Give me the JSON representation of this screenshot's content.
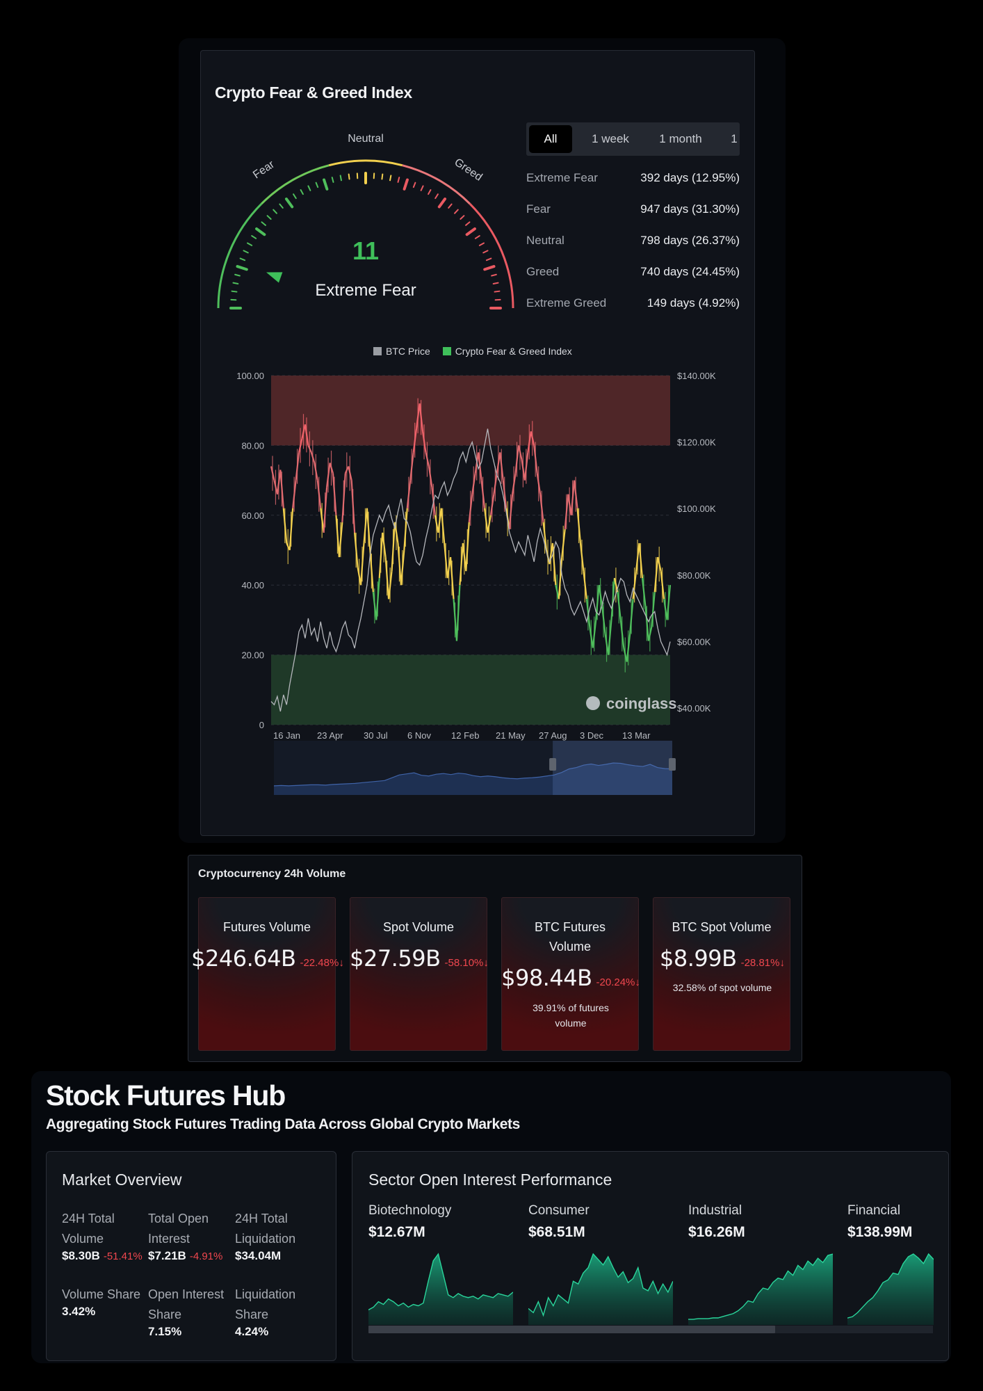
{
  "fear_greed": {
    "title": "Crypto Fear & Greed Index",
    "gauge": {
      "value": "11",
      "label": "Extreme Fear",
      "ticks": {
        "fear": "Fear",
        "neutral": "Neutral",
        "greed": "Greed"
      },
      "level": 11
    },
    "tabs": [
      "All",
      "1 week",
      "1 month",
      "1"
    ],
    "stats": [
      {
        "name": "Extreme Fear",
        "value": "392 days (12.95%)"
      },
      {
        "name": "Fear",
        "value": "947 days (31.30%)"
      },
      {
        "name": "Neutral",
        "value": "798 days (26.37%)"
      },
      {
        "name": "Greed",
        "value": "740 days (24.45%)"
      },
      {
        "name": "Extreme Greed",
        "value": "149 days (4.92%)"
      }
    ],
    "legend": {
      "btc": "BTC Price",
      "index": "Crypto Fear & Greed Index"
    },
    "watermark": "coinglass"
  },
  "chart_data": {
    "type": "line",
    "x_ticks": [
      "16 Jan",
      "23 Apr",
      "30 Jul",
      "6 Nov",
      "12 Feb",
      "21 May",
      "27 Aug",
      "3 Dec",
      "13 Mar"
    ],
    "y_left_ticks": [
      "100.00",
      "80.00",
      "60.00",
      "40.00",
      "20.00",
      "0"
    ],
    "y_right_ticks": [
      "$140.00K",
      "$120.00K",
      "$100.00K",
      "$80.00K",
      "$60.00K",
      "$40.00K"
    ],
    "ylim_left": [
      0,
      100
    ],
    "ylim_right": [
      35000,
      140000
    ],
    "zones": [
      {
        "from": 80,
        "to": 100,
        "color": "#5a2a2c"
      },
      {
        "from": 0,
        "to": 20,
        "color": "#22412b"
      }
    ],
    "series": [
      {
        "name": "Crypto Fear & Greed Index",
        "colors": {
          "extreme_greed": "#f0636a",
          "greed": "#e06a6f",
          "neutral": "#f2d04e",
          "fear": "#4fbf5c"
        },
        "values": [
          74,
          70,
          66,
          73,
          62,
          52,
          50,
          62,
          70,
          78,
          82,
          86,
          80,
          78,
          75,
          70,
          62,
          55,
          68,
          75,
          72,
          60,
          48,
          58,
          72,
          74,
          70,
          55,
          45,
          40,
          52,
          62,
          50,
          38,
          30,
          42,
          55,
          48,
          36,
          44,
          58,
          52,
          40,
          50,
          62,
          70,
          78,
          85,
          92,
          84,
          78,
          74,
          68,
          60,
          55,
          62,
          52,
          42,
          48,
          36,
          24,
          40,
          52,
          44,
          58,
          66,
          72,
          78,
          70,
          62,
          55,
          60,
          66,
          72,
          78,
          70,
          62,
          56,
          66,
          72,
          80,
          76,
          70,
          78,
          84,
          80,
          72,
          66,
          58,
          50,
          46,
          52,
          40,
          36,
          48,
          56,
          66,
          60,
          70,
          62,
          52,
          44,
          36,
          28,
          22,
          30,
          40,
          34,
          26,
          20,
          30,
          42,
          38,
          30,
          22,
          18,
          26,
          36,
          44,
          52,
          42,
          34,
          24,
          28,
          38,
          48,
          44,
          36,
          30,
          40
        ]
      },
      {
        "name": "BTC Price",
        "color": "#b5b7bc",
        "values": [
          42000,
          41000,
          43500,
          39000,
          44000,
          41000,
          47000,
          52000,
          57000,
          63000,
          65000,
          61000,
          67000,
          62000,
          64000,
          60000,
          66000,
          61000,
          58000,
          63000,
          59000,
          57000,
          60000,
          64000,
          66000,
          62000,
          61000,
          58000,
          63000,
          67000,
          72000,
          77000,
          86000,
          92000,
          95000,
          98000,
          96000,
          99000,
          101000,
          97000,
          94000,
          99000,
          103000,
          97000,
          96000,
          93000,
          88000,
          84000,
          83000,
          86000,
          91000,
          95000,
          100000,
          104000,
          103000,
          106000,
          108000,
          104000,
          106000,
          109000,
          111000,
          115000,
          117000,
          114000,
          118000,
          120000,
          116000,
          112000,
          114000,
          119000,
          124000,
          118000,
          114000,
          110000,
          108000,
          104000,
          99000,
          93000,
          90000,
          87000,
          90000,
          88000,
          86000,
          92000,
          88000,
          84000,
          90000,
          94000,
          91000,
          87000,
          84000,
          86000,
          90000,
          88000,
          80000,
          76000,
          74000,
          70000,
          68000,
          70000,
          72000,
          69000,
          66000,
          70000,
          73000,
          69000,
          68000,
          71000,
          75000,
          72000,
          70000,
          73000,
          76000,
          79000,
          78000,
          74000,
          72000,
          76000,
          74000,
          72000,
          70000,
          68000,
          66000,
          68000,
          69000,
          64000,
          60000,
          58000,
          56000,
          60000
        ]
      }
    ],
    "navigator": [
      18,
      19,
      18,
      19,
      20,
      21,
      21,
      20,
      22,
      23,
      24,
      25,
      27,
      29,
      31,
      33,
      41,
      49,
      52,
      55,
      48,
      46,
      51,
      53,
      50,
      54,
      52,
      47,
      44,
      46,
      44,
      41,
      39,
      38,
      40,
      41,
      43,
      46,
      49,
      56,
      66,
      70,
      77,
      80,
      76,
      79,
      83,
      82,
      78,
      75,
      73,
      79,
      70,
      67,
      66
    ],
    "navigator_window": {
      "from": 0.7,
      "to": 1.0
    }
  },
  "volume": {
    "title": "Cryptocurrency 24h Volume",
    "cards": [
      {
        "title": "Futures Volume",
        "value": "$246.64B",
        "change": "-22.48%",
        "arrow": "↓",
        "note": ""
      },
      {
        "title": "Spot Volume",
        "value": "$27.59B",
        "change": "-58.10%",
        "arrow": "↓",
        "note": ""
      },
      {
        "title": "BTC Futures Volume",
        "value": "$98.44B",
        "change": "-20.24%",
        "arrow": "↓",
        "note": "39.91% of futures volume"
      },
      {
        "title": "BTC Spot Volume",
        "value": "$8.99B",
        "change": "-28.81%",
        "arrow": "↓",
        "note": "32.58% of spot volume"
      }
    ]
  },
  "hub": {
    "title": "Stock Futures Hub",
    "subtitle": "Aggregating Stock Futures Trading Data Across Global Crypto Markets",
    "market_overview": {
      "title": "Market Overview",
      "items": [
        {
          "label": "24H Total Volume",
          "value": "$8.30B",
          "change": "-51.41%"
        },
        {
          "label": "Total Open Interest",
          "value": "$7.21B",
          "change": "-4.91%"
        },
        {
          "label": "24H Total Liquidation",
          "value": "$34.04M",
          "change": ""
        },
        {
          "label": "Volume Share",
          "value": "3.42%",
          "change": ""
        },
        {
          "label": "Open Interest Share",
          "value": "7.15%",
          "change": ""
        },
        {
          "label": "Liquidation Share",
          "value": "4.24%",
          "change": ""
        }
      ]
    },
    "sector": {
      "title": "Sector Open Interest Performance",
      "sectors": [
        {
          "name": "Biotechnology",
          "value": "$12.67M",
          "spark": [
            18,
            22,
            30,
            26,
            34,
            30,
            24,
            28,
            22,
            26,
            24,
            28,
            60,
            90,
            100,
            70,
            40,
            36,
            42,
            38,
            36,
            38,
            34,
            40,
            38,
            36,
            42,
            40,
            38,
            44
          ]
        },
        {
          "name": "Consumer",
          "value": "$68.51M",
          "spark": [
            20,
            14,
            30,
            10,
            36,
            24,
            40,
            34,
            28,
            60,
            56,
            72,
            80,
            100,
            92,
            84,
            96,
            80,
            66,
            74,
            58,
            64,
            80,
            50,
            46,
            60,
            42,
            56,
            44,
            60
          ]
        },
        {
          "name": "Industrial",
          "value": "$16.26M",
          "spark": [
            4,
            4,
            5,
            5,
            5,
            6,
            6,
            8,
            10,
            12,
            16,
            22,
            30,
            28,
            40,
            48,
            46,
            56,
            62,
            60,
            72,
            66,
            80,
            74,
            86,
            80,
            90,
            84,
            94,
            96
          ]
        },
        {
          "name": "Financial",
          "value": "$138.99M",
          "spark": [
            6,
            8,
            14,
            22,
            30,
            36,
            46,
            58,
            62,
            72,
            70,
            86,
            96,
            100,
            94,
            86,
            100,
            92
          ]
        }
      ],
      "scroll_position": 0.72
    }
  }
}
